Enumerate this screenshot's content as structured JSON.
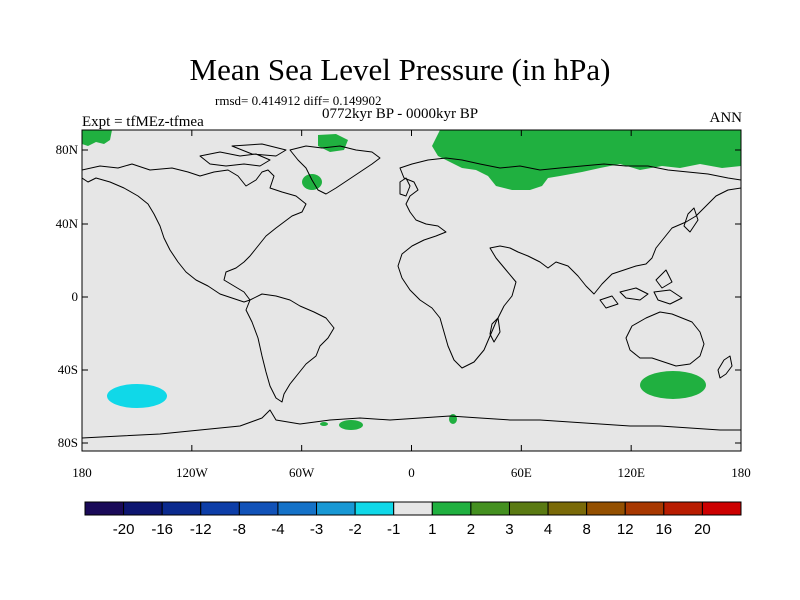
{
  "title": "Mean Sea Level Pressure (in hPa)",
  "stats": "rmsd= 0.414912 diff= 0.149902",
  "experiment": "Expt = tfMEz-tfmea",
  "period": "0772kyr BP - 0000kyr BP",
  "season": "ANN",
  "map": {
    "lat_ticks": [
      "80N",
      "40N",
      "0",
      "40S",
      "80S"
    ],
    "lon_ticks": [
      "180",
      "120W",
      "60W",
      "0",
      "60E",
      "120E",
      "180"
    ],
    "colors": {
      "background": "#e6e6e6",
      "positive": "#20b040",
      "negative": "#10d8e8",
      "coast": "#000000"
    }
  },
  "colorbar": {
    "labels": [
      "-20",
      "-16",
      "-12",
      "-8",
      "-4",
      "-3",
      "-2",
      "-1",
      "1",
      "2",
      "3",
      "4",
      "8",
      "12",
      "16",
      "20"
    ],
    "colors": [
      "#1a0a58",
      "#0d1670",
      "#0b2a8e",
      "#0d3ea8",
      "#1152b8",
      "#1572c8",
      "#1898d4",
      "#10d8e8",
      "#e6e6e6",
      "#20b040",
      "#449020",
      "#5a7a12",
      "#7a6a08",
      "#945000",
      "#a83800",
      "#b81c00",
      "#cc0000"
    ]
  }
}
